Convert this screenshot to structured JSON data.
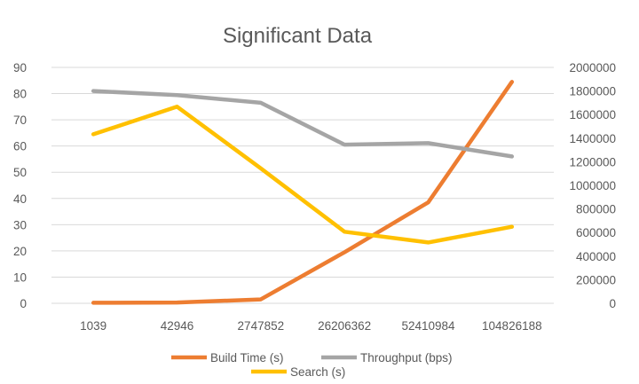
{
  "chart_data": {
    "type": "line",
    "title": "Significant Data",
    "categories": [
      "1039",
      "42946",
      "2747852",
      "26206362",
      "52410984",
      "104826188"
    ],
    "y_left": {
      "ylim": [
        0,
        90
      ],
      "ticks": [
        "0",
        "10",
        "20",
        "30",
        "40",
        "50",
        "60",
        "70",
        "80",
        "90"
      ]
    },
    "y_right": {
      "ylim": [
        0,
        2000000
      ],
      "ticks": [
        "0",
        "200000",
        "400000",
        "600000",
        "800000",
        "1000000",
        "1200000",
        "1400000",
        "1600000",
        "1800000",
        "2000000"
      ]
    },
    "series": [
      {
        "name": "Build Time (s)",
        "axis": "left",
        "color": "#ED7D31",
        "values": [
          0.2,
          0.3,
          1.5,
          19.5,
          38.5,
          84.5
        ]
      },
      {
        "name": "Throughput (bps)",
        "axis": "right",
        "color": "#A5A5A5",
        "values": [
          1800000,
          1765000,
          1700000,
          1345000,
          1358000,
          1245000
        ]
      },
      {
        "name": "Search (s)",
        "axis": "left",
        "color": "#FFC000",
        "values": [
          64.5,
          75,
          51.5,
          27.3,
          23.2,
          29.2
        ]
      }
    ],
    "grid": true,
    "legend_position": "bottom"
  }
}
